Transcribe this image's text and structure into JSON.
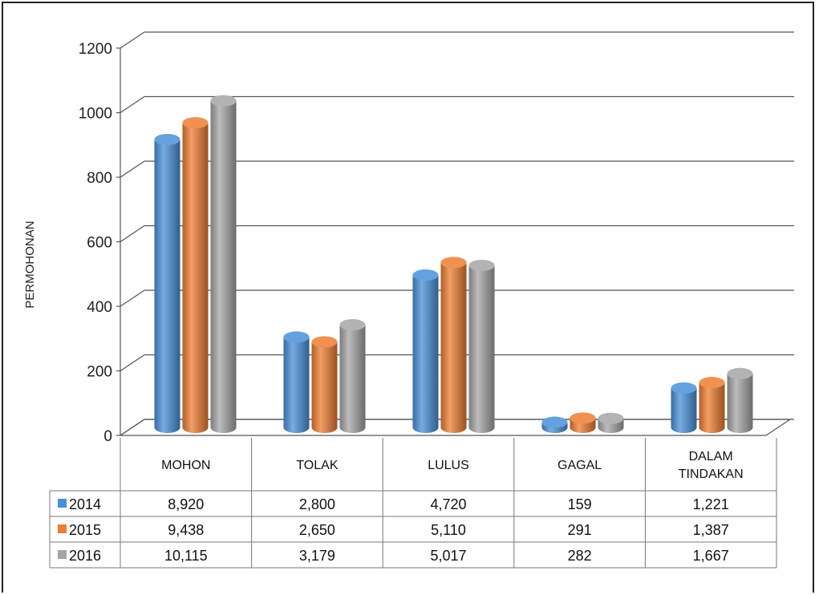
{
  "chart_data": {
    "type": "bar",
    "ylabel": "PERMOHONAN",
    "ylim": [
      0,
      1200
    ],
    "yticks": [
      0,
      200,
      400,
      600,
      800,
      1000,
      1200
    ],
    "categories": [
      "MOHON",
      "TOLAK",
      "LULUS",
      "GAGAL",
      "DALAM TINDAKAN"
    ],
    "category_lines": [
      [
        "MOHON"
      ],
      [
        "TOLAK"
      ],
      [
        "LULUS"
      ],
      [
        "GAGAL"
      ],
      [
        "DALAM",
        "TINDAKAN"
      ]
    ],
    "series": [
      {
        "name": "2014",
        "color": "#4a90d9",
        "values": [
          892,
          280,
          472,
          16,
          122
        ],
        "labels": [
          "8,920",
          "2,800",
          "4,720",
          "159",
          "1,221"
        ]
      },
      {
        "name": "2015",
        "color": "#ed7d31",
        "values": [
          944,
          265,
          511,
          29,
          139
        ],
        "labels": [
          "9,438",
          "2,650",
          "5,110",
          "291",
          "1,387"
        ]
      },
      {
        "name": "2016",
        "color": "#a5a5a5",
        "values": [
          1012,
          318,
          502,
          28,
          167
        ],
        "labels": [
          "10,115",
          "3,179",
          "5,017",
          "282",
          "1,667"
        ]
      }
    ],
    "grid": true,
    "legend": "in-table"
  }
}
